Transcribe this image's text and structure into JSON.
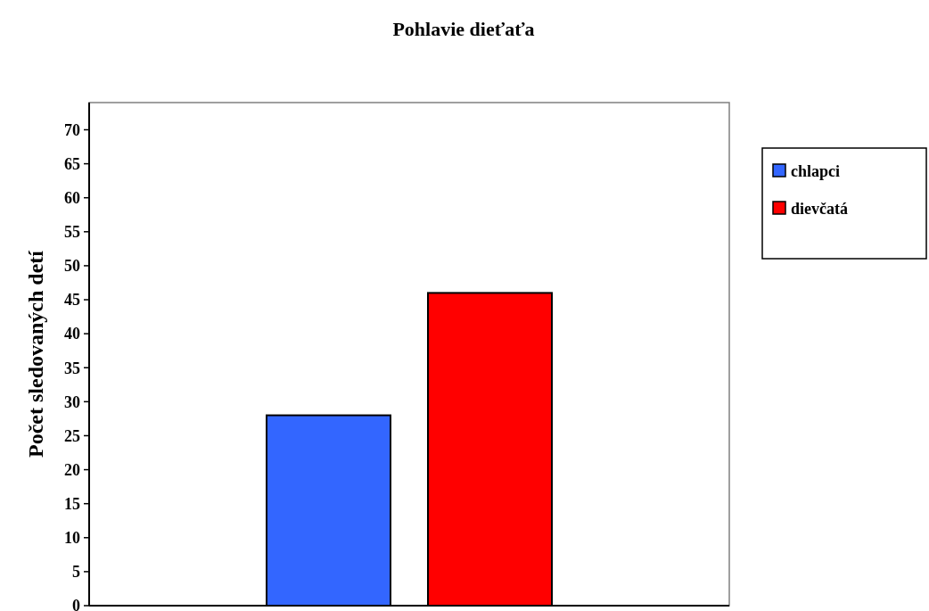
{
  "chart_data": {
    "type": "bar",
    "title": "Pohlavie dieťaťa",
    "ylabel": "Počet sledovaných detí",
    "categories": [
      null
    ],
    "series": [
      {
        "name": "chlapci",
        "color": "#3366ff",
        "values": [
          28
        ]
      },
      {
        "name": "dievčatá",
        "color": "#ff0000",
        "values": [
          46
        ]
      }
    ],
    "ylim": [
      0,
      74
    ],
    "yticks": [
      0,
      5,
      10,
      15,
      20,
      25,
      30,
      35,
      40,
      45,
      50,
      55,
      60,
      65,
      70
    ],
    "grid": false,
    "legend": "right"
  }
}
